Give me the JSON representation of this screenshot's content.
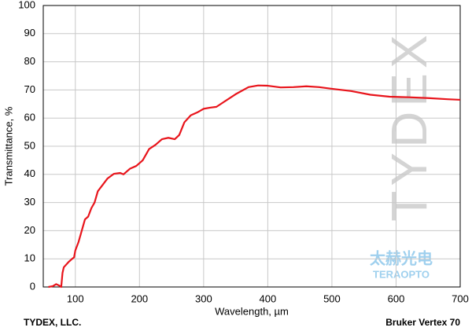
{
  "chart_data": {
    "type": "line",
    "x_label": "Wavelength, µm",
    "y_label": "Transmittance, %",
    "footer_left": "TYDEX, LLC.",
    "footer_right": "Bruker Vertex 70",
    "watermarks": [
      "TYDEX",
      "太赫光电",
      "TERAOPTO"
    ],
    "xlim": [
      50,
      700
    ],
    "ylim": [
      0,
      100
    ],
    "xticks": [
      100,
      200,
      300,
      400,
      500,
      600,
      700
    ],
    "yticks": [
      0,
      10,
      20,
      30,
      40,
      50,
      60,
      70,
      80,
      90,
      100
    ],
    "grid": true,
    "series": [
      {
        "color": "#e8141b",
        "x": [
          58,
          65,
          70,
          75,
          78,
          80,
          82,
          90,
          95,
          98,
          100,
          105,
          110,
          115,
          120,
          125,
          130,
          135,
          140,
          145,
          150,
          160,
          170,
          175,
          185,
          195,
          205,
          215,
          225,
          235,
          245,
          255,
          262,
          270,
          280,
          290,
          300,
          310,
          320,
          330,
          350,
          370,
          385,
          400,
          420,
          440,
          460,
          480,
          500,
          530,
          560,
          590,
          620,
          650,
          680,
          700
        ],
        "values": [
          0,
          0.3,
          1,
          0.5,
          0,
          5,
          7,
          9,
          10,
          10.5,
          13,
          16,
          20,
          24,
          25,
          28,
          30,
          34,
          35.5,
          37,
          38.5,
          40.2,
          40.5,
          40,
          42,
          43,
          45,
          49,
          50.5,
          52.5,
          53,
          52.5,
          54,
          58.5,
          61,
          62,
          63.3,
          63.7,
          64,
          65.5,
          68.5,
          71,
          71.6,
          71.5,
          70.9,
          71,
          71.3,
          71,
          70.4,
          69.6,
          68.3,
          67.6,
          67.4,
          67.1,
          66.7,
          66.5
        ]
      }
    ]
  }
}
